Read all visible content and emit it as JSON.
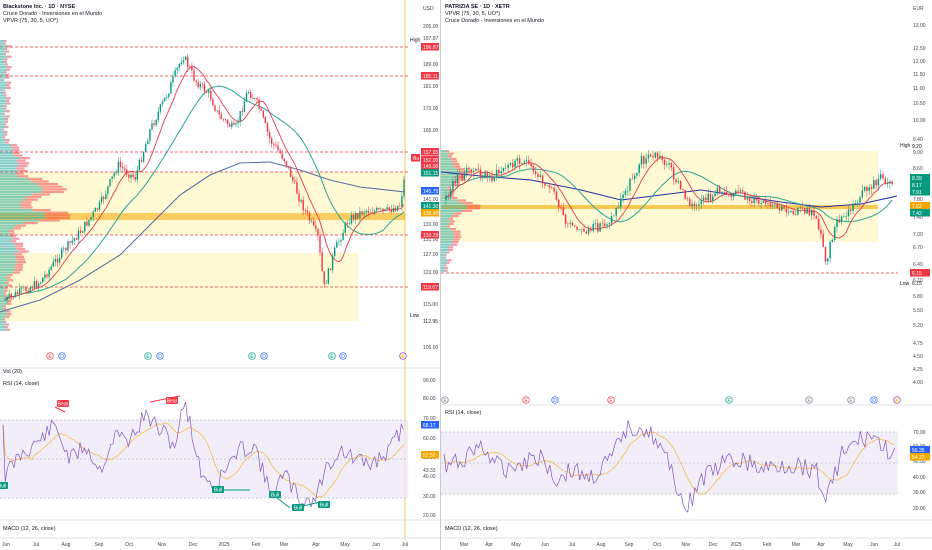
{
  "left": {
    "symbol": "Blackstone Inc. · 1D · NYSE",
    "indicator_1": "Cruce Dorado - Inversiones en el Mundo",
    "indicator_2": "VPVR (75, 30, 5, UO*)",
    "vol_label": "Vol (20)",
    "rsi_label": "RSI (14, close)",
    "macd_label": "MACD (12, 26, close)",
    "currency": "USD",
    "price_ticks": [
      "205.00",
      "197.87",
      "189.00",
      "181.00",
      "173.00",
      "165.00",
      "157.00",
      "149.00",
      "141.00",
      "133.00",
      "131.00",
      "127.00",
      "123.00",
      "119.00",
      "115.00",
      "111.50",
      "105.00"
    ],
    "rsi_ticks": [
      "90.00",
      "80.00",
      "70.00",
      "60.00",
      "50.00",
      "43.33",
      "40.00",
      "30.00",
      "20.00"
    ],
    "x_ticks": [
      "Jun",
      "Jul",
      "Aug",
      "Sep",
      "Oct",
      "Nov",
      "Dec",
      "2025",
      "Feb",
      "Mar",
      "Apr",
      "May",
      "Jun",
      "Jul"
    ],
    "price_tags": [
      {
        "text": "High",
        "dark": true
      },
      {
        "text": "197.87",
        "dark": true
      },
      {
        "text": "196.87",
        "color": "#f23645"
      },
      {
        "text": "185.11",
        "color": "#f23645"
      },
      {
        "text": "157.95",
        "color": "#f23645"
      },
      {
        "text": "Bu",
        "color": "#f23645"
      },
      {
        "text": "152.00",
        "color": "#f23645"
      },
      {
        "text": "149.00",
        "color": "#f23645"
      },
      {
        "text": "151.15",
        "color": "#089981"
      },
      {
        "text": "145.79",
        "color": "#2962ff"
      },
      {
        "text": "141.30",
        "color": "#089981"
      },
      {
        "text": "138.45",
        "color": "#f7a600"
      },
      {
        "text": "133.29",
        "color": "#f23645"
      },
      {
        "text": "119.67",
        "color": "#f23645"
      },
      {
        "text": "Low",
        "dark": true
      },
      {
        "text": "112.95",
        "dark": true
      }
    ],
    "rsi_tags": [
      {
        "text": "68.17",
        "color": "#2962ff"
      },
      {
        "text": "52.50",
        "color": "#f7a600"
      }
    ],
    "signals": [
      {
        "text": "Bear",
        "color": "#f23645"
      },
      {
        "text": "Bear",
        "color": "#f23645"
      },
      {
        "text": "Bull",
        "color": "#089981"
      },
      {
        "text": "Bull",
        "color": "#089981"
      },
      {
        "text": "Bull",
        "color": "#089981"
      },
      {
        "text": "Bull",
        "color": "#089981"
      },
      {
        "text": "Bull",
        "color": "#089981"
      }
    ],
    "events": [
      {
        "text": "E",
        "color": "#f23645"
      },
      {
        "text": "D",
        "color": "#2962ff"
      },
      {
        "text": "E",
        "color": "#089981"
      },
      {
        "text": "D",
        "color": "#2962ff"
      },
      {
        "text": "E",
        "color": "#089981"
      },
      {
        "text": "D",
        "color": "#2962ff"
      },
      {
        "text": "E",
        "color": "#089981"
      },
      {
        "text": "D",
        "color": "#2962ff"
      },
      {
        "text": "⚡",
        "color": "#9c27b0"
      }
    ]
  },
  "right": {
    "symbol": "PATRIZIA SE · 1D · XETR",
    "indicator_1": "VPVR (75, 30, 5, UO*)",
    "indicator_2": "Cruce Dorado - Inversiones en el Mundo",
    "rsi_label": "RSI (14, close)",
    "macd_label": "MACD (12, 26, close)",
    "currency": "EUR",
    "price_ticks": [
      "13.00",
      "12.50",
      "12.00",
      "11.50",
      "11.00",
      "10.50",
      "10.00",
      "9.40",
      "9.00",
      "8.60",
      "8.20",
      "7.80",
      "7.40",
      "7.00",
      "6.70",
      "6.40",
      "6.10",
      "5.80",
      "5.50",
      "5.20",
      "4.75",
      "4.50",
      "4.25",
      "4.00"
    ],
    "rsi_ticks": [
      "70.00",
      "60.00",
      "50.00",
      "40.00",
      "30.00",
      "20.00"
    ],
    "x_ticks": [
      "Mar",
      "Apr",
      "May",
      "Jun",
      "Jul",
      "Aug",
      "Sep",
      "Oct",
      "Nov",
      "Dec",
      "2025",
      "Feb",
      "Mar",
      "Apr",
      "May",
      "Jun",
      "Jul"
    ],
    "price_tags": [
      {
        "text": "High",
        "dark": true
      },
      {
        "text": "9.20",
        "dark": true
      },
      {
        "text": "8.39",
        "color": "#089981"
      },
      {
        "text": "8.17",
        "color": "#089981"
      },
      {
        "text": "7.91",
        "color": "#089981"
      },
      {
        "text": "7.62",
        "color": "#f7a600"
      },
      {
        "text": "7.42",
        "color": "#089981"
      },
      {
        "text": "6.15",
        "color": "#f23645"
      },
      {
        "text": "Low",
        "dark": true
      },
      {
        "text": "6.15",
        "dark": true
      }
    ],
    "rsi_tags": [
      {
        "text": "56.35",
        "color": "#2962ff"
      },
      {
        "text": "54.23",
        "color": "#f7a600"
      }
    ],
    "events": [
      {
        "text": "E",
        "color": "#787b86"
      },
      {
        "text": "E",
        "color": "#f23645"
      },
      {
        "text": "D",
        "color": "#2962ff"
      },
      {
        "text": "E",
        "color": "#f23645"
      },
      {
        "text": "E",
        "color": "#089981"
      },
      {
        "text": "E",
        "color": "#787b86"
      },
      {
        "text": "E",
        "color": "#787b86"
      },
      {
        "text": "D",
        "color": "#2962ff"
      },
      {
        "text": "⚡",
        "color": "#9c27b0"
      }
    ]
  }
}
